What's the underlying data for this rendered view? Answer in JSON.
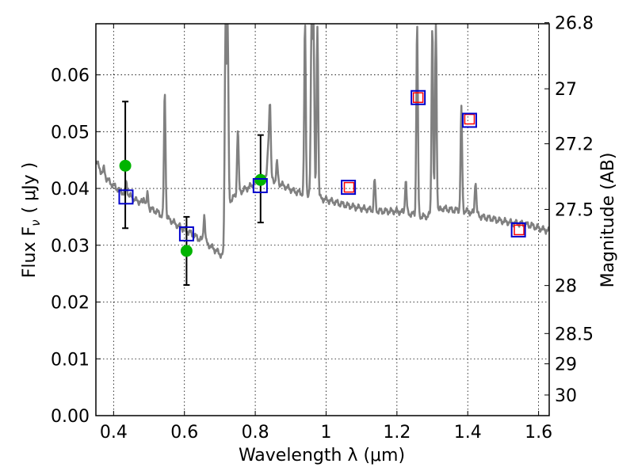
{
  "chart_data": {
    "type": "scatter",
    "xlabel": "Wavelength  λ (μm)",
    "ylabel": "Flux  F",
    "ylabel_sub": "ν",
    "ylabel_units": "( μJy )",
    "y2label": "Magnitude (AB)",
    "xlim": [
      0.35,
      1.63
    ],
    "ylim": [
      0.0,
      0.069
    ],
    "grid": true,
    "x_ticks": [
      {
        "value": 0.4,
        "label": "0.4"
      },
      {
        "value": 0.6,
        "label": "0.6"
      },
      {
        "value": 0.8,
        "label": "0.8"
      },
      {
        "value": 1.0,
        "label": "1"
      },
      {
        "value": 1.2,
        "label": "1.2"
      },
      {
        "value": 1.4,
        "label": "1.4"
      },
      {
        "value": 1.6,
        "label": "1.6"
      }
    ],
    "y_ticks": [
      {
        "value": 0.0,
        "label": "0.00"
      },
      {
        "value": 0.01,
        "label": "0.01"
      },
      {
        "value": 0.02,
        "label": "0.02"
      },
      {
        "value": 0.03,
        "label": "0.03"
      },
      {
        "value": 0.04,
        "label": "0.04"
      },
      {
        "value": 0.05,
        "label": "0.05"
      },
      {
        "value": 0.06,
        "label": "0.06"
      }
    ],
    "y2_ticks": [
      {
        "mag": 26.8,
        "label": "26.8"
      },
      {
        "mag": 27.0,
        "label": "27"
      },
      {
        "mag": 27.2,
        "label": "27.2"
      },
      {
        "mag": 27.5,
        "label": "27.5"
      },
      {
        "mag": 28.0,
        "label": "28"
      },
      {
        "mag": 28.5,
        "label": "28.5"
      },
      {
        "mag": 29.0,
        "label": "29"
      },
      {
        "mag": 30.0,
        "label": "30"
      }
    ],
    "series": [
      {
        "name": "model spectrum",
        "kind": "line",
        "color": "#808080",
        "continuum": [
          [
            0.35,
            0.045
          ],
          [
            0.36,
            0.0435
          ],
          [
            0.37,
            0.0425
          ],
          [
            0.38,
            0.0418
          ],
          [
            0.39,
            0.041
          ],
          [
            0.4,
            0.0405
          ],
          [
            0.42,
            0.0395
          ],
          [
            0.44,
            0.039
          ],
          [
            0.46,
            0.038
          ],
          [
            0.48,
            0.0375
          ],
          [
            0.5,
            0.0365
          ],
          [
            0.52,
            0.036
          ],
          [
            0.54,
            0.035
          ],
          [
            0.56,
            0.0345
          ],
          [
            0.58,
            0.0335
          ],
          [
            0.6,
            0.0328
          ],
          [
            0.62,
            0.032
          ],
          [
            0.64,
            0.0312
          ],
          [
            0.66,
            0.0305
          ],
          [
            0.68,
            0.0295
          ],
          [
            0.7,
            0.0285
          ],
          [
            0.705,
            0.0282
          ],
          [
            0.71,
            0.0285
          ],
          [
            0.72,
            0.036
          ],
          [
            0.73,
            0.038
          ],
          [
            0.76,
            0.0395
          ],
          [
            0.79,
            0.0405
          ],
          [
            0.82,
            0.042
          ],
          [
            0.85,
            0.0415
          ],
          [
            0.88,
            0.0405
          ],
          [
            0.91,
            0.0395
          ],
          [
            0.94,
            0.039
          ],
          [
            0.97,
            0.0385
          ],
          [
            1.0,
            0.038
          ],
          [
            1.03,
            0.0375
          ],
          [
            1.06,
            0.037
          ],
          [
            1.1,
            0.0365
          ],
          [
            1.15,
            0.036
          ],
          [
            1.2,
            0.036
          ],
          [
            1.24,
            0.0355
          ],
          [
            1.28,
            0.035
          ],
          [
            1.3,
            0.0355
          ],
          [
            1.33,
            0.0365
          ],
          [
            1.36,
            0.0362
          ],
          [
            1.4,
            0.036
          ],
          [
            1.44,
            0.035
          ],
          [
            1.48,
            0.0345
          ],
          [
            1.52,
            0.034
          ],
          [
            1.55,
            0.0338
          ],
          [
            1.58,
            0.0335
          ],
          [
            1.6,
            0.033
          ],
          [
            1.63,
            0.0325
          ]
        ],
        "emission_lines": [
          {
            "x": 0.373,
            "peak": 0.0435
          },
          {
            "x": 0.436,
            "peak": 0.041
          },
          {
            "x": 0.486,
            "peak": 0.0385
          },
          {
            "x": 0.496,
            "peak": 0.039
          },
          {
            "x": 0.5445,
            "peak": 0.0572
          },
          {
            "x": 0.656,
            "peak": 0.0355
          },
          {
            "x": 0.716,
            "peak": 0.069
          },
          {
            "x": 0.722,
            "peak": 0.069
          },
          {
            "x": 0.7508,
            "peak": 0.0505
          },
          {
            "x": 0.8366,
            "peak": 0.0472
          },
          {
            "x": 0.8415,
            "peak": 0.0552
          },
          {
            "x": 0.8615,
            "peak": 0.0445
          },
          {
            "x": 0.9405,
            "peak": 0.069
          },
          {
            "x": 0.959,
            "peak": 0.069
          },
          {
            "x": 0.9645,
            "peak": 0.069
          },
          {
            "x": 0.9755,
            "peak": 0.069
          },
          {
            "x": 1.137,
            "peak": 0.0415
          },
          {
            "x": 1.225,
            "peak": 0.0415
          },
          {
            "x": 1.257,
            "peak": 0.069
          },
          {
            "x": 1.3,
            "peak": 0.069
          },
          {
            "x": 1.31,
            "peak": 0.069
          },
          {
            "x": 1.382,
            "peak": 0.054
          },
          {
            "x": 1.422,
            "peak": 0.0415
          }
        ]
      },
      {
        "name": "observed photometry",
        "kind": "errorbar",
        "marker_color": "#00b400",
        "points": [
          {
            "x": 0.433,
            "y": 0.044,
            "err_low": 0.033,
            "err_high": 0.0553
          },
          {
            "x": 0.606,
            "y": 0.029,
            "err_low": 0.023,
            "err_high": 0.035
          },
          {
            "x": 0.815,
            "y": 0.0415,
            "err_low": 0.034,
            "err_high": 0.0494
          }
        ]
      },
      {
        "name": "model synthetic photometry",
        "kind": "open-squares",
        "edge_color": "#0000cc",
        "points": [
          {
            "x": 0.435,
            "y": 0.0385
          },
          {
            "x": 0.606,
            "y": 0.032
          },
          {
            "x": 0.814,
            "y": 0.0405
          },
          {
            "x": 1.063,
            "y": 0.0402
          },
          {
            "x": 1.26,
            "y": 0.056
          },
          {
            "x": 1.405,
            "y": 0.052
          },
          {
            "x": 1.543,
            "y": 0.0327
          }
        ]
      },
      {
        "name": "non-detection upper limits",
        "kind": "red-squares",
        "edge_color": "#ff0000",
        "points": [
          {
            "x": 1.065,
            "y": 0.0402
          },
          {
            "x": 1.26,
            "y": 0.056
          },
          {
            "x": 1.405,
            "y": 0.0522
          },
          {
            "x": 1.545,
            "y": 0.0327
          }
        ]
      }
    ]
  }
}
